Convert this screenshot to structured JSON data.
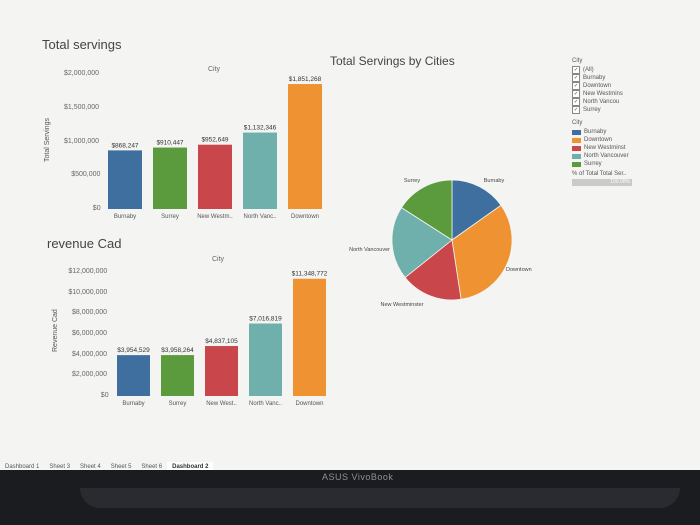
{
  "dashboard": {
    "servings_chart": {
      "title": "Total servings",
      "xlabel": "City",
      "ylabel": "Total Servings",
      "yticks": [
        "$2,000,000",
        "$1,500,000",
        "$1,000,000",
        "$500,000",
        "$0"
      ]
    },
    "revenue_chart": {
      "title": "revenue Cad",
      "xlabel": "City",
      "ylabel": "Revenue Cad",
      "yticks": [
        "$12,000,000",
        "$10,000,000",
        "$8,000,000",
        "$6,000,000",
        "$4,000,000",
        "$2,000,000",
        "$0"
      ]
    },
    "pie_chart": {
      "title": "Total Servings by Cities"
    },
    "legend": {
      "filter_title": "City",
      "filter_items": [
        "(All)",
        "Burnaby",
        "Downtown",
        "New Westmins",
        "North Vancou",
        "Surrey"
      ],
      "color_title": "City",
      "color_items": [
        "Burnaby",
        "Downtown",
        "New Westminst",
        "North Vancouver",
        "Surrey"
      ],
      "pct_title": "% of Total Total Ser..",
      "pct_value": "100.00%"
    },
    "tabs": [
      "Dashboard 1",
      "Sheet 3",
      "Sheet 4",
      "Sheet 5",
      "Sheet 6",
      "Dashboard 2"
    ],
    "active_tab": "Dashboard 2",
    "laptop_brand": "ASUS VivoBook"
  },
  "colors": {
    "Burnaby": "#3e6f9e",
    "Surrey": "#5b9a3d",
    "New Westminster": "#c9474b",
    "North Vancouver": "#6fb0ad",
    "Downtown": "#ee9232"
  },
  "chart_data": [
    {
      "type": "bar",
      "title": "Total servings",
      "xlabel": "City",
      "ylabel": "Total Servings",
      "categories": [
        "Burnaby",
        "Surrey",
        "New Westm..",
        "North Vanc..",
        "Downtown"
      ],
      "values": [
        868247,
        910447,
        952649,
        1132346,
        1851268
      ],
      "labels": [
        "$868,247",
        "$910,447",
        "$952,649",
        "$1,132,346",
        "$1,851,268"
      ],
      "ylim": [
        0,
        2000000
      ]
    },
    {
      "type": "bar",
      "title": "revenue Cad",
      "xlabel": "City",
      "ylabel": "Revenue Cad",
      "categories": [
        "Burnaby",
        "Surrey",
        "New West..",
        "North Vanc..",
        "Downtown"
      ],
      "values": [
        3954529,
        3958264,
        4837105,
        7016819,
        11348772
      ],
      "labels": [
        "$3,954,529",
        "$3,958,264",
        "$4,837,105",
        "$7,016,819",
        "$11,348,772"
      ],
      "ylim": [
        0,
        12000000
      ]
    },
    {
      "type": "pie",
      "title": "Total Servings by Cities",
      "categories": [
        "Burnaby",
        "Downtown",
        "New Westminster",
        "North Vancouver",
        "Surrey"
      ],
      "values": [
        868247,
        1851268,
        952649,
        1132346,
        910447
      ]
    }
  ]
}
